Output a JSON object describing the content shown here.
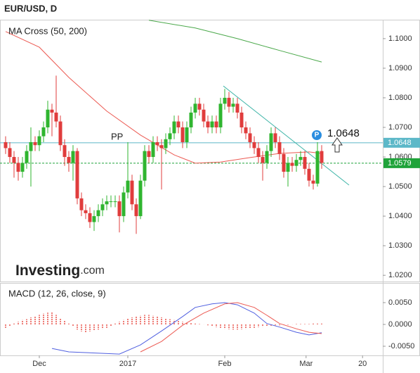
{
  "header": {
    "title": "EUR/USD, D"
  },
  "chart_data": [
    {
      "type": "candlestick",
      "title": "MA Cross (50, 200)",
      "up_color": "#2fb52f",
      "down_color": "#e03c3c",
      "open": [
        1.065,
        1.063,
        1.06,
        1.058,
        1.055,
        1.058,
        1.062,
        1.065,
        1.064,
        1.067,
        1.07,
        1.076,
        1.075,
        1.072,
        1.064,
        1.06,
        1.058,
        1.062,
        1.046,
        1.042,
        1.041,
        1.038,
        1.04,
        1.042,
        1.044,
        1.045,
        1.045,
        1.045,
        1.04,
        1.048,
        1.052,
        1.044,
        1.04,
        1.052,
        1.062,
        1.06,
        1.065,
        1.064,
        1.063,
        1.066,
        1.068,
        1.072,
        1.07,
        1.065,
        1.07,
        1.075,
        1.078,
        1.076,
        1.072,
        1.07,
        1.072,
        1.07,
        1.078,
        1.08,
        1.077,
        1.078,
        1.075,
        1.07,
        1.068,
        1.065,
        1.063,
        1.06,
        1.058,
        1.062,
        1.068,
        1.065,
        1.061,
        1.055,
        1.058,
        1.057,
        1.059,
        1.06,
        1.056,
        1.052,
        1.051,
        1.062
      ],
      "high": [
        1.067,
        1.065,
        1.062,
        1.06,
        1.06,
        1.064,
        1.07,
        1.067,
        1.069,
        1.072,
        1.079,
        1.078,
        1.0875,
        1.074,
        1.066,
        1.062,
        1.064,
        1.063,
        1.048,
        1.044,
        1.043,
        1.042,
        1.044,
        1.046,
        1.047,
        1.047,
        1.047,
        1.047,
        1.05,
        1.065,
        1.054,
        1.046,
        1.054,
        1.064,
        1.064,
        1.067,
        1.067,
        1.066,
        1.068,
        1.07,
        1.074,
        1.074,
        1.072,
        1.072,
        1.077,
        1.08,
        1.08,
        1.078,
        1.074,
        1.074,
        1.074,
        1.08,
        1.083,
        1.082,
        1.08,
        1.08,
        1.077,
        1.072,
        1.07,
        1.067,
        1.065,
        1.062,
        1.064,
        1.07,
        1.07,
        1.067,
        1.063,
        1.06,
        1.06,
        1.061,
        1.062,
        1.062,
        1.058,
        1.054,
        1.065,
        1.064
      ],
      "low": [
        1.061,
        1.058,
        1.053,
        1.052,
        1.053,
        1.056,
        1.05,
        1.062,
        1.062,
        1.065,
        1.068,
        1.067,
        1.07,
        1.062,
        1.057,
        1.055,
        1.052,
        1.044,
        1.04,
        1.039,
        1.036,
        1.035,
        1.038,
        1.04,
        1.042,
        1.043,
        1.043,
        1.0345,
        1.038,
        1.046,
        1.042,
        1.034,
        1.039,
        1.05,
        1.058,
        1.058,
        1.062,
        1.049,
        1.061,
        1.064,
        1.066,
        1.068,
        1.063,
        1.063,
        1.068,
        1.073,
        1.074,
        1.07,
        1.068,
        1.068,
        1.068,
        1.068,
        1.076,
        1.075,
        1.075,
        1.073,
        1.068,
        1.066,
        1.063,
        1.061,
        1.058,
        1.052,
        1.056,
        1.06,
        1.063,
        1.059,
        1.053,
        1.05,
        1.055,
        1.055,
        1.057,
        1.054,
        1.05,
        1.049,
        1.05,
        1.056
      ],
      "close": [
        1.063,
        1.06,
        1.058,
        1.055,
        1.058,
        1.062,
        1.065,
        1.064,
        1.067,
        1.07,
        1.076,
        1.075,
        1.072,
        1.064,
        1.06,
        1.058,
        1.062,
        1.046,
        1.042,
        1.041,
        1.038,
        1.04,
        1.042,
        1.044,
        1.045,
        1.045,
        1.045,
        1.04,
        1.048,
        1.052,
        1.044,
        1.04,
        1.052,
        1.062,
        1.06,
        1.065,
        1.064,
        1.063,
        1.066,
        1.068,
        1.072,
        1.07,
        1.065,
        1.07,
        1.075,
        1.078,
        1.076,
        1.072,
        1.07,
        1.072,
        1.07,
        1.078,
        1.08,
        1.077,
        1.078,
        1.075,
        1.07,
        1.068,
        1.065,
        1.063,
        1.06,
        1.058,
        1.062,
        1.068,
        1.065,
        1.061,
        1.055,
        1.058,
        1.057,
        1.059,
        1.06,
        1.056,
        1.052,
        1.051,
        1.062,
        1.058
      ],
      "lines": [
        {
          "color": "#ec5a52",
          "x": [
            0,
            8,
            15,
            24,
            32,
            40,
            45,
            51,
            58,
            65,
            72,
            75
          ],
          "values": [
            1.1024,
            1.0971,
            1.0869,
            1.0755,
            1.0674,
            1.0607,
            1.0579,
            1.0583,
            1.0598,
            1.0612,
            1.0617,
            1.0612
          ]
        },
        {
          "color": "#4aa84a",
          "x": [
            34,
            45,
            55,
            65,
            75
          ],
          "values": [
            1.1062,
            1.1036,
            1.1,
            1.096,
            1.0921
          ]
        }
      ],
      "trendline": {
        "color": "#3fb5a8",
        "x": [
          51.67,
          81.5
        ],
        "values": [
          1.084,
          1.0505
        ]
      },
      "levels": [
        {
          "value": 1.0648,
          "color": "#5cb8c8"
        },
        {
          "value": 1.0579,
          "color": "#1fa33a"
        }
      ],
      "annotations": {
        "pp": "PP",
        "pivot": "P"
      },
      "ylim": [
        1.0179,
        1.1064
      ],
      "yticks": [
        {
          "value": 1.1,
          "label": "1.1000"
        },
        {
          "value": 1.09,
          "label": "1.0900"
        },
        {
          "value": 1.08,
          "label": "1.0800"
        },
        {
          "value": 1.07,
          "label": "1.0700"
        },
        {
          "value": 1.06,
          "label": "1.0600"
        },
        {
          "value": 1.05,
          "label": "1.0500"
        },
        {
          "value": 1.04,
          "label": "1.0400"
        },
        {
          "value": 1.03,
          "label": "1.0300"
        },
        {
          "value": 1.02,
          "label": "1.0200"
        }
      ],
      "logo": {
        "brand": "Investing",
        "suffix": ".com"
      }
    },
    {
      "type": "macd",
      "title": "MACD (12, 26, close, 9)",
      "histogram": {
        "color": "#e8524a",
        "values": [
          -0.0008,
          -0.0004,
          0.0002,
          0.0006,
          0.001,
          0.0012,
          0.0016,
          0.0018,
          0.0022,
          0.0025,
          0.0027,
          0.0028,
          0.0022,
          0.0014,
          0.0008,
          0.0002,
          -0.0004,
          -0.0012,
          -0.0016,
          -0.0018,
          -0.0016,
          -0.0014,
          -0.0012,
          -0.001,
          -0.0008,
          -0.0004,
          0.0002,
          0.0006,
          0.001,
          0.0014,
          0.0016,
          0.0018,
          0.002,
          0.0022,
          0.0022,
          0.002,
          0.0018,
          0.0016,
          0.0014,
          0.0012,
          0.001,
          0.0008,
          0.0006,
          0.0004,
          0.0003,
          0.0002,
          0.0001,
          0,
          -0.0002,
          -0.0004,
          -0.0006,
          -0.0008,
          -0.001,
          -0.0011,
          -0.0012,
          -0.0012,
          -0.0011,
          -0.001,
          -0.0009,
          -0.0008,
          -0.0006,
          -0.0005,
          -0.0004,
          -0.0003,
          -0.0002,
          -0.0002,
          -0.0001,
          -0.0001,
          0,
          0.0001,
          0.0001,
          0.0001,
          0.0001,
          0.0002,
          0.0002,
          0.0002
        ]
      },
      "lines": [
        {
          "color": "#4f5fe0",
          "x": [
            11,
            15,
            27,
            32,
            37,
            42,
            45,
            49,
            52,
            55,
            59,
            62,
            65,
            69,
            72,
            75
          ],
          "values": [
            -0.0055,
            -0.0063,
            -0.0068,
            -0.0047,
            -0.0015,
            0.0018,
            0.0039,
            0.0047,
            0.005,
            0.0045,
            0.0026,
            0.0002,
            -0.0006,
            -0.0018,
            -0.0024,
            -0.0019
          ]
        },
        {
          "color": "#ec5a52",
          "x": [
            32,
            37,
            42,
            47,
            52,
            55,
            59,
            62,
            65,
            69,
            72,
            75
          ],
          "values": [
            -0.0063,
            -0.0039,
            -0.0002,
            0.0026,
            0.0047,
            0.005,
            0.0039,
            0.0021,
            0.0002,
            -0.001,
            -0.0018,
            -0.0021
          ]
        }
      ],
      "ylim": [
        -0.0071,
        0.00935
      ],
      "yticks": [
        {
          "value": 0.005,
          "label": "0.0050"
        },
        {
          "value": 0,
          "label": "0.0000"
        },
        {
          "value": -0.005,
          "label": "-0.0050"
        }
      ],
      "xlim": [
        -1.33,
        89.5
      ],
      "xticks": [
        {
          "value": 8,
          "label": "Dec"
        },
        {
          "value": 29,
          "label": "2017"
        },
        {
          "value": 52,
          "label": "Feb"
        },
        {
          "value": 71.3,
          "label": "Mar"
        },
        {
          "value": 84.7,
          "label": "20"
        }
      ]
    }
  ]
}
